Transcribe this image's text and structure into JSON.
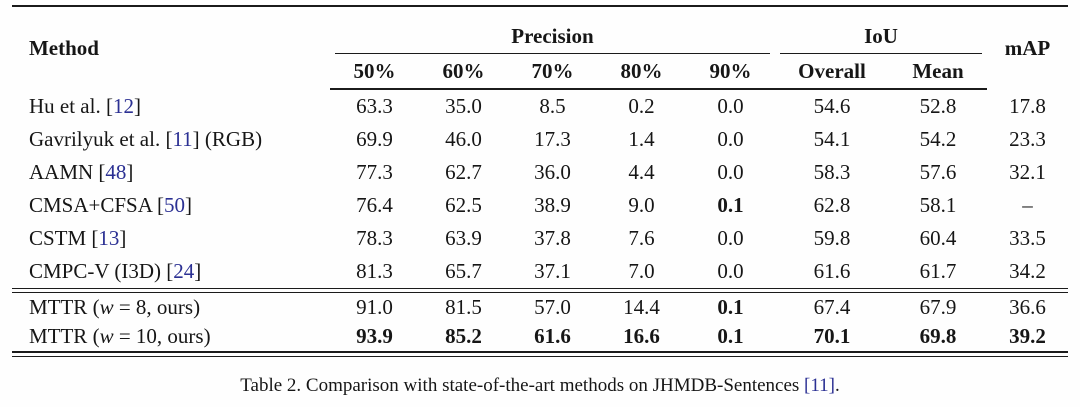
{
  "colors": {
    "citation_link": "#2b3093",
    "text": "#161616",
    "rule": "#1b1b1b"
  },
  "table": {
    "header": {
      "method": "Method",
      "precision_group": "Precision",
      "iou_group": "IoU",
      "map": "mAP",
      "precision_cols": [
        "50%",
        "60%",
        "70%",
        "80%",
        "90%"
      ],
      "iou_cols": [
        "Overall",
        "Mean"
      ]
    },
    "rows": [
      {
        "group": 1,
        "name_parts": [
          {
            "t": "Hu et al. [",
            "style": "plain"
          },
          {
            "t": "12",
            "style": "cite"
          },
          {
            "t": "]",
            "style": "plain"
          }
        ],
        "values": [
          "63.3",
          "35.0",
          "8.5",
          "0.2",
          "0.0",
          "54.6",
          "52.8",
          "17.8"
        ],
        "bold": [
          false,
          false,
          false,
          false,
          false,
          false,
          false,
          false
        ]
      },
      {
        "group": 1,
        "name_parts": [
          {
            "t": "Gavrilyuk et al. [",
            "style": "plain"
          },
          {
            "t": "11",
            "style": "cite"
          },
          {
            "t": "] (RGB)",
            "style": "plain"
          }
        ],
        "values": [
          "69.9",
          "46.0",
          "17.3",
          "1.4",
          "0.0",
          "54.1",
          "54.2",
          "23.3"
        ],
        "bold": [
          false,
          false,
          false,
          false,
          false,
          false,
          false,
          false
        ]
      },
      {
        "group": 1,
        "name_parts": [
          {
            "t": "AAMN [",
            "style": "plain"
          },
          {
            "t": "48",
            "style": "cite"
          },
          {
            "t": "]",
            "style": "plain"
          }
        ],
        "values": [
          "77.3",
          "62.7",
          "36.0",
          "4.4",
          "0.0",
          "58.3",
          "57.6",
          "32.1"
        ],
        "bold": [
          false,
          false,
          false,
          false,
          false,
          false,
          false,
          false
        ]
      },
      {
        "group": 1,
        "name_parts": [
          {
            "t": "CMSA+CFSA [",
            "style": "plain"
          },
          {
            "t": "50",
            "style": "cite"
          },
          {
            "t": "]",
            "style": "plain"
          }
        ],
        "values": [
          "76.4",
          "62.5",
          "38.9",
          "9.0",
          "0.1",
          "62.8",
          "58.1",
          "–"
        ],
        "bold": [
          false,
          false,
          false,
          false,
          true,
          false,
          false,
          false
        ]
      },
      {
        "group": 1,
        "name_parts": [
          {
            "t": "CSTM [",
            "style": "plain"
          },
          {
            "t": "13",
            "style": "cite"
          },
          {
            "t": "]",
            "style": "plain"
          }
        ],
        "values": [
          "78.3",
          "63.9",
          "37.8",
          "7.6",
          "0.0",
          "59.8",
          "60.4",
          "33.5"
        ],
        "bold": [
          false,
          false,
          false,
          false,
          false,
          false,
          false,
          false
        ]
      },
      {
        "group": 1,
        "name_parts": [
          {
            "t": "CMPC-V (I3D) [",
            "style": "plain"
          },
          {
            "t": "24",
            "style": "cite"
          },
          {
            "t": "]",
            "style": "plain"
          }
        ],
        "values": [
          "81.3",
          "65.7",
          "37.1",
          "7.0",
          "0.0",
          "61.6",
          "61.7",
          "34.2"
        ],
        "bold": [
          false,
          false,
          false,
          false,
          false,
          false,
          false,
          false
        ]
      },
      {
        "group": 2,
        "name_parts": [
          {
            "t": "MTTR (",
            "style": "plain"
          },
          {
            "t": "w",
            "style": "math"
          },
          {
            "t": " = 8, ours)",
            "style": "plain"
          }
        ],
        "values": [
          "91.0",
          "81.5",
          "57.0",
          "14.4",
          "0.1",
          "67.4",
          "67.9",
          "36.6"
        ],
        "bold": [
          false,
          false,
          false,
          false,
          true,
          false,
          false,
          false
        ]
      },
      {
        "group": 2,
        "name_parts": [
          {
            "t": "MTTR (",
            "style": "plain"
          },
          {
            "t": "w",
            "style": "math"
          },
          {
            "t": " = 10, ours)",
            "style": "plain"
          }
        ],
        "values": [
          "93.9",
          "85.2",
          "61.6",
          "16.6",
          "0.1",
          "70.1",
          "69.8",
          "39.2"
        ],
        "bold": [
          true,
          true,
          true,
          true,
          true,
          true,
          true,
          true
        ]
      }
    ],
    "caption": {
      "prefix": "Table 2. Comparison with state-of-the-art methods on JHMDB-Sentences ",
      "cite": "[11]",
      "suffix": "."
    }
  }
}
